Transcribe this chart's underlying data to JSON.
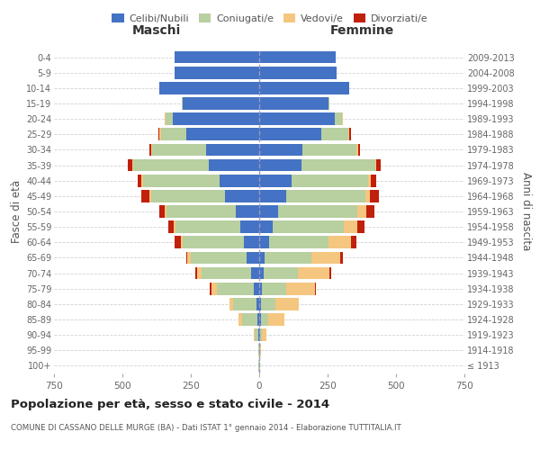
{
  "age_groups": [
    "100+",
    "95-99",
    "90-94",
    "85-89",
    "80-84",
    "75-79",
    "70-74",
    "65-69",
    "60-64",
    "55-59",
    "50-54",
    "45-49",
    "40-44",
    "35-39",
    "30-34",
    "25-29",
    "20-24",
    "15-19",
    "10-14",
    "5-9",
    "0-4"
  ],
  "birth_years": [
    "≤ 1913",
    "1914-1918",
    "1919-1923",
    "1924-1928",
    "1929-1933",
    "1934-1938",
    "1939-1943",
    "1944-1948",
    "1949-1953",
    "1954-1958",
    "1959-1963",
    "1964-1968",
    "1969-1973",
    "1974-1978",
    "1979-1983",
    "1984-1988",
    "1989-1993",
    "1994-1998",
    "1999-2003",
    "2004-2008",
    "2009-2013"
  ],
  "male": {
    "celibi": [
      1,
      1,
      3,
      8,
      10,
      20,
      30,
      45,
      55,
      70,
      85,
      125,
      145,
      185,
      195,
      265,
      315,
      280,
      365,
      310,
      310
    ],
    "coniugati": [
      1,
      2,
      12,
      55,
      85,
      135,
      180,
      205,
      225,
      235,
      255,
      270,
      280,
      275,
      195,
      95,
      28,
      4,
      0,
      0,
      0
    ],
    "vedovi": [
      0,
      1,
      5,
      12,
      15,
      20,
      18,
      12,
      6,
      6,
      5,
      5,
      5,
      5,
      4,
      4,
      4,
      0,
      0,
      0,
      0
    ],
    "divorziati": [
      0,
      0,
      0,
      0,
      0,
      5,
      5,
      5,
      22,
      22,
      20,
      32,
      15,
      15,
      8,
      4,
      0,
      0,
      0,
      0,
      0
    ]
  },
  "female": {
    "nubili": [
      1,
      1,
      3,
      6,
      6,
      10,
      15,
      20,
      35,
      50,
      70,
      100,
      120,
      155,
      158,
      228,
      275,
      252,
      328,
      282,
      278
    ],
    "coniugate": [
      1,
      2,
      8,
      28,
      52,
      88,
      128,
      172,
      218,
      258,
      288,
      288,
      278,
      268,
      198,
      98,
      28,
      4,
      0,
      0,
      0
    ],
    "vedove": [
      1,
      2,
      15,
      58,
      88,
      105,
      115,
      105,
      82,
      52,
      32,
      16,
      10,
      5,
      5,
      4,
      4,
      0,
      0,
      0,
      0
    ],
    "divorziate": [
      0,
      0,
      0,
      0,
      0,
      4,
      5,
      10,
      20,
      25,
      30,
      35,
      20,
      15,
      8,
      4,
      0,
      0,
      0,
      0,
      0
    ]
  },
  "colors": {
    "celibi": "#4472c4",
    "coniugati": "#b8cfa0",
    "vedovi": "#f5c67f",
    "divorziati": "#c0200c"
  },
  "title": "Popolazione per età, sesso e stato civile - 2014",
  "subtitle": "COMUNE DI CASSANO DELLE MURGE (BA) - Dati ISTAT 1° gennaio 2014 - Elaborazione TUTTITALIA.IT",
  "xlim": 750,
  "ylabel_left": "Fasce di età",
  "ylabel_right": "Anni di nascita",
  "xlabel_male": "Maschi",
  "xlabel_female": "Femmine",
  "legend_labels": [
    "Celibi/Nubili",
    "Coniugati/e",
    "Vedovi/e",
    "Divorziati/e"
  ],
  "background_color": "#ffffff",
  "grid_color": "#cccccc"
}
